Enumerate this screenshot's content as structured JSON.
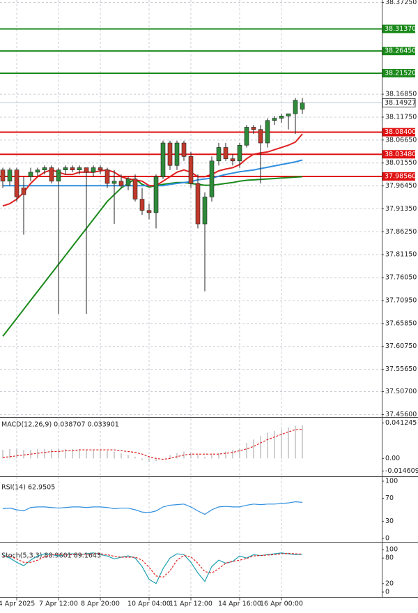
{
  "chart_data": [
    {
      "type": "candlestick",
      "categories": [
        null,
        null,
        "4 Apr 2025",
        null,
        null,
        null,
        null,
        null,
        "7 Apr 12:00",
        null,
        null,
        null,
        null,
        null,
        "8 Apr 20:00",
        null,
        null,
        null,
        null,
        null,
        null,
        "10 Apr 04:00",
        null,
        null,
        null,
        null,
        null,
        "11 Apr 12:00",
        null,
        null,
        null,
        null,
        null,
        null,
        "14 Apr 16:00",
        null,
        null,
        null,
        null,
        null,
        "16 Apr 00:00",
        null,
        null,
        null
      ],
      "values": [
        [
          38.0,
          38.005,
          37.96,
          37.975
        ],
        [
          37.975,
          38.005,
          37.965,
          38.0
        ],
        [
          38.0,
          38.005,
          37.93,
          37.94
        ],
        [
          37.96,
          37.985,
          37.856,
          37.945
        ],
        [
          37.985,
          38.005,
          37.975,
          37.995
        ],
        [
          37.995,
          38.005,
          37.985,
          38.0
        ],
        [
          38.0,
          38.01,
          37.99,
          38.005
        ],
        [
          38.005,
          38.01,
          37.97,
          37.975
        ],
        [
          37.975,
          38.005,
          37.68,
          38.0
        ],
        [
          38.0,
          38.01,
          37.99,
          38.005
        ],
        [
          38.005,
          38.01,
          37.995,
          38.0
        ],
        [
          38.0,
          38.01,
          37.99,
          38.005
        ],
        [
          38.005,
          38.005,
          37.68,
          37.995
        ],
        [
          37.995,
          38.01,
          37.985,
          38.005
        ],
        [
          38.005,
          38.01,
          37.99,
          38.0
        ],
        [
          38.0,
          38.005,
          37.96,
          37.97
        ],
        [
          37.97,
          38.0,
          37.88,
          37.975
        ],
        [
          37.975,
          37.99,
          37.96,
          37.965
        ],
        [
          37.965,
          37.985,
          37.955,
          37.98
        ],
        [
          37.98,
          37.99,
          37.93,
          37.935
        ],
        [
          37.935,
          37.96,
          37.9,
          37.91
        ],
        [
          37.91,
          37.925,
          37.89,
          37.905
        ],
        [
          37.905,
          37.99,
          37.87,
          37.985
        ],
        [
          37.985,
          38.065,
          37.98,
          38.06
        ],
        [
          38.06,
          38.065,
          38.0,
          38.01
        ],
        [
          38.01,
          38.065,
          38.0,
          38.06
        ],
        [
          38.06,
          38.065,
          38.02,
          38.03
        ],
        [
          38.03,
          38.04,
          37.96,
          37.97
        ],
        [
          37.97,
          37.99,
          37.87,
          37.88
        ],
        [
          37.88,
          37.95,
          37.73,
          37.94
        ],
        [
          37.94,
          38.03,
          37.93,
          38.02
        ],
        [
          38.02,
          38.06,
          38.01,
          38.05
        ],
        [
          38.05,
          38.06,
          38.02,
          38.025
        ],
        [
          38.025,
          38.035,
          38.01,
          38.02
        ],
        [
          38.02,
          38.06,
          38.005,
          38.055
        ],
        [
          38.055,
          38.1,
          38.05,
          38.095
        ],
        [
          38.095,
          38.1,
          38.08,
          38.09
        ],
        [
          38.09,
          38.1,
          37.97,
          38.06
        ],
        [
          38.06,
          38.115,
          38.05,
          38.11
        ],
        [
          38.11,
          38.12,
          38.1,
          38.115
        ],
        [
          38.115,
          38.125,
          38.105,
          38.12
        ],
        [
          38.12,
          38.125,
          38.09,
          38.125
        ],
        [
          38.125,
          38.16,
          38.08,
          38.155
        ],
        [
          38.135,
          38.16,
          38.125,
          38.149
        ]
      ],
      "up_color": "#2e8b3a",
      "down_color": "#c0392b",
      "series": [
        {
          "color": "#1a8a1a",
          "values": [
            37.63,
            37.65,
            37.67,
            37.69,
            37.71,
            37.73,
            37.75,
            37.77,
            37.79,
            37.81,
            37.83,
            37.85,
            37.87,
            37.89,
            37.91,
            37.93,
            37.945,
            37.96,
            37.97,
            37.98,
            37.968,
            37.962,
            37.965,
            37.968,
            37.97,
            37.972,
            37.972,
            37.97,
            37.968,
            37.966,
            37.966,
            37.968,
            37.97,
            37.972,
            37.975,
            37.977,
            37.978,
            37.979,
            37.98,
            37.981,
            37.982,
            37.983,
            37.984,
            37.985
          ]
        },
        {
          "color": "#2f8fe0",
          "values": [
            37.965,
            37.965,
            37.965,
            37.965,
            37.965,
            37.965,
            37.965,
            37.965,
            37.965,
            37.965,
            37.965,
            37.965,
            37.965,
            37.965,
            37.965,
            37.965,
            37.965,
            37.965,
            37.965,
            37.965,
            37.965,
            37.965,
            37.965,
            37.965,
            37.968,
            37.97,
            37.972,
            37.974,
            37.978,
            37.98,
            37.982,
            37.986,
            37.99,
            37.993,
            37.996,
            37.998,
            38.0,
            38.003,
            38.006,
            38.009,
            38.012,
            38.015,
            38.018,
            38.022
          ]
        },
        {
          "color": "#e02020",
          "values": [
            37.92,
            37.925,
            37.935,
            37.95,
            37.97,
            37.985,
            37.995,
            38.0,
            37.995,
            37.99,
            37.99,
            37.995,
            37.995,
            37.995,
            37.998,
            38.0,
            37.995,
            37.985,
            37.98,
            37.978,
            37.975,
            37.965,
            37.965,
            37.975,
            37.985,
            37.995,
            38.0,
            37.995,
            37.985,
            37.985,
            37.99,
            37.998,
            38.002,
            38.005,
            38.012,
            38.025,
            38.035,
            38.038,
            38.04,
            38.045,
            38.05,
            38.055,
            38.062,
            38.08
          ]
        }
      ],
      "levels": [
        {
          "value": 38.3137,
          "label": "38.31370",
          "color": "#1a8a1a"
        },
        {
          "value": 38.2645,
          "label": "38.26450",
          "color": "#1a8a1a"
        },
        {
          "value": 38.2152,
          "label": "38.21520",
          "color": "#1a8a1a"
        },
        {
          "value": 38.084,
          "label": "38.08400",
          "color": "#e01010"
        },
        {
          "value": 38.0348,
          "label": "38.03480",
          "color": "#e01010"
        },
        {
          "value": 37.9856,
          "label": "37.98560",
          "color": "#e01010"
        }
      ],
      "current_price": 38.14927,
      "ylim": [
        37.452,
        38.378
      ],
      "yticks": [
        {
          "value": 38.3725,
          "label": "38.37250"
        },
        {
          "value": 38.1685,
          "label": "38.16850"
        },
        {
          "value": 38.1175,
          "label": "38.11750"
        },
        {
          "value": 38.0665,
          "label": "38.06650"
        },
        {
          "value": 38.0155,
          "label": "38.01550"
        },
        {
          "value": 37.9645,
          "label": "37.96450"
        },
        {
          "value": 37.9135,
          "label": "37.91350"
        },
        {
          "value": 37.8625,
          "label": "37.86250"
        },
        {
          "value": 37.8115,
          "label": "37.81150"
        },
        {
          "value": 37.7605,
          "label": "37.76050"
        },
        {
          "value": 37.7095,
          "label": "37.70950"
        },
        {
          "value": 37.6585,
          "label": "37.65850"
        },
        {
          "value": 37.6075,
          "label": "37.60750"
        },
        {
          "value": 37.5565,
          "label": "37.55650"
        },
        {
          "value": 37.507,
          "label": "37.50700"
        },
        {
          "value": 37.456,
          "label": "37.45600"
        }
      ],
      "grid": true
    },
    {
      "type": "line",
      "title": "MACD(12,26,9) 0.038707 0.033901",
      "series": [
        {
          "type": "bar",
          "color": "#b0b0b0",
          "values": [
            0.01,
            0.011,
            0.011,
            0.01,
            0.01,
            0.011,
            0.011,
            0.011,
            0.011,
            0.011,
            0.011,
            0.011,
            0.01,
            0.01,
            0.01,
            0.009,
            0.008,
            0.006,
            0.004,
            0.002,
            -0.002,
            -0.004,
            -0.003,
            0.0,
            0.004,
            0.006,
            0.008,
            0.006,
            0.004,
            0.002,
            0.004,
            0.006,
            0.008,
            0.01,
            0.012,
            0.018,
            0.022,
            0.026,
            0.03,
            0.032,
            0.034,
            0.036,
            0.038,
            0.0387
          ]
        },
        {
          "type": "line",
          "dash": true,
          "color": "#e02020",
          "values": [
            0.001,
            0.002,
            0.003,
            0.004,
            0.005,
            0.006,
            0.007,
            0.008,
            0.008,
            0.009,
            0.009,
            0.01,
            0.01,
            0.01,
            0.01,
            0.01,
            0.01,
            0.009,
            0.008,
            0.007,
            0.005,
            0.002,
            0.0,
            -0.001,
            0.0,
            0.002,
            0.004,
            0.005,
            0.005,
            0.005,
            0.005,
            0.005,
            0.006,
            0.007,
            0.009,
            0.011,
            0.014,
            0.018,
            0.022,
            0.025,
            0.028,
            0.031,
            0.0335,
            0.0339
          ]
        }
      ],
      "ylim": [
        -0.0184,
        0.0466
      ],
      "yticks": [
        0.041245,
        {
          "value": 0,
          "label": "0.00"
        },
        -0.014609
      ]
    },
    {
      "type": "line",
      "title": "RSI(14) 62.9505",
      "series": [
        {
          "type": "line",
          "color": "#2f8fe0",
          "values": [
            52,
            53,
            50,
            48,
            54,
            55,
            55,
            54,
            53,
            54,
            55,
            55,
            54,
            55,
            55,
            54,
            52,
            53,
            53,
            50,
            46,
            45,
            48,
            55,
            58,
            59,
            60,
            55,
            48,
            42,
            50,
            55,
            56,
            55,
            55,
            58,
            60,
            59,
            60,
            60,
            61,
            62,
            64,
            62.95
          ]
        }
      ],
      "ylim": [
        0,
        100
      ],
      "yticks": [
        100,
        70,
        30,
        0
      ]
    },
    {
      "type": "line",
      "title": "Stoch(5,3,3) 88.9601 89.1643",
      "series": [
        {
          "type": "line",
          "color": "#20a0b0",
          "values": [
            88,
            80,
            70,
            62,
            75,
            85,
            90,
            88,
            85,
            88,
            90,
            88,
            90,
            92,
            88,
            85,
            78,
            82,
            85,
            80,
            60,
            30,
            20,
            55,
            80,
            90,
            88,
            70,
            45,
            25,
            60,
            75,
            68,
            72,
            85,
            80,
            88,
            86,
            88,
            90,
            92,
            90,
            88,
            88.96
          ]
        },
        {
          "type": "line",
          "dash": true,
          "color": "#e02020",
          "values": [
            85,
            84,
            78,
            70,
            70,
            75,
            83,
            88,
            88,
            87,
            88,
            89,
            89,
            90,
            90,
            88,
            84,
            82,
            82,
            82,
            75,
            58,
            38,
            35,
            50,
            75,
            86,
            83,
            68,
            48,
            45,
            55,
            68,
            72,
            75,
            79,
            85,
            86,
            87,
            88,
            90,
            91,
            90,
            89.16
          ]
        }
      ],
      "ylim": [
        0,
        100
      ],
      "yticks": [
        100,
        80,
        20,
        0
      ]
    }
  ]
}
